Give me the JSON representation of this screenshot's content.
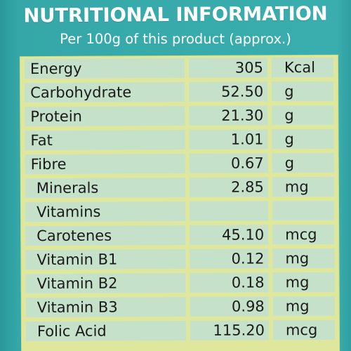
{
  "header": {
    "title": "NUTRITIONAL INFORMATION",
    "subtitle": "Per 100g of this product (approx.)"
  },
  "rows": [
    {
      "name": "Energy",
      "value": "305",
      "unit": "Kcal"
    },
    {
      "name": "Carbohydrate",
      "value": "52.50",
      "unit": "g"
    },
    {
      "name": "Protein",
      "value": "21.30",
      "unit": "g"
    },
    {
      "name": "Fat",
      "value": "1.01",
      "unit": "g"
    },
    {
      "name": "Fibre",
      "value": "0.67",
      "unit": "g"
    },
    {
      "name": "Minerals",
      "value": "2.85",
      "unit": "mg"
    },
    {
      "name": "Vitamins",
      "value": "",
      "unit": ""
    },
    {
      "name": "Carotenes",
      "value": "45.10",
      "unit": "mcg"
    },
    {
      "name": "Vitamin B1",
      "value": "0.12",
      "unit": "mg"
    },
    {
      "name": "Vitamin B2",
      "value": "0.18",
      "unit": "mg"
    },
    {
      "name": "Vitamin B3",
      "value": "0.98",
      "unit": "mg"
    },
    {
      "name": "Folic Acid",
      "value": "115.20",
      "unit": "mcg"
    }
  ]
}
